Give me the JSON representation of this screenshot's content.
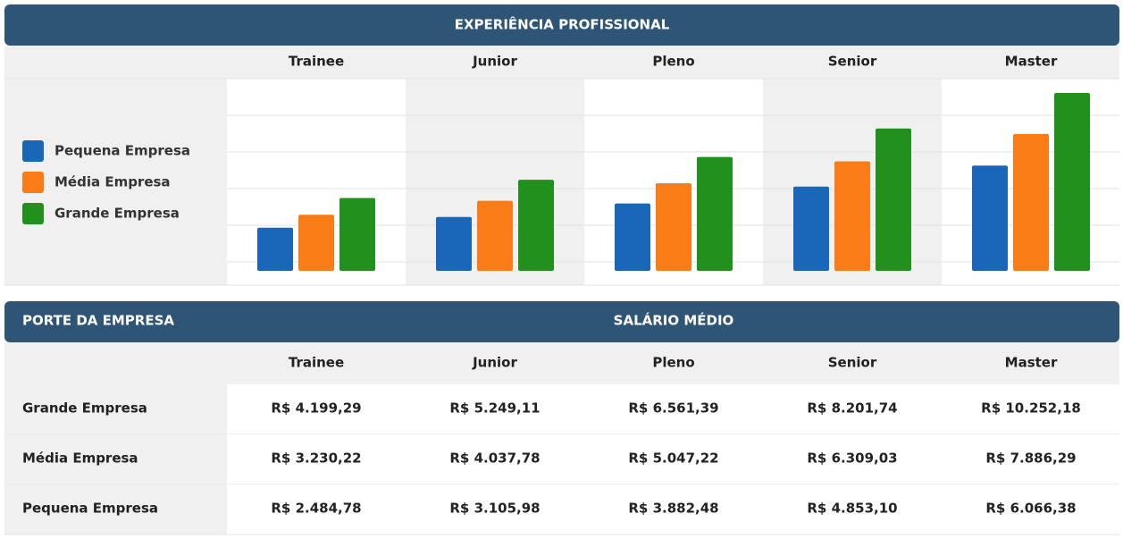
{
  "chart_data": {
    "type": "bar",
    "title": "EXPERIÊNCIA PROFISSIONAL",
    "categories": [
      "Trainee",
      "Junior",
      "Pleno",
      "Senior",
      "Master"
    ],
    "series": [
      {
        "name": "Pequena Empresa",
        "color": "#1a66b8",
        "values": [
          2484.78,
          3105.98,
          3882.48,
          4853.1,
          6066.38
        ]
      },
      {
        "name": "Média Empresa",
        "color": "#f97c16",
        "values": [
          3230.22,
          4037.78,
          5047.22,
          6309.03,
          7886.29
        ]
      },
      {
        "name": "Grande Empresa",
        "color": "#21901d",
        "values": [
          4199.29,
          5249.11,
          6561.39,
          8201.74,
          10252.18
        ]
      }
    ],
    "ylim": [
      0,
      11000
    ],
    "legend": "left"
  },
  "table": {
    "corner": "PORTE DA EMPRESA",
    "title": "SALÁRIO MÉDIO",
    "rows": [
      [
        "Grande Empresa",
        "R$ 4.199,29",
        "R$ 5.249,11",
        "R$ 6.561,39",
        "R$ 8.201,74",
        "R$ 10.252,18"
      ],
      [
        "Média Empresa",
        "R$ 3.230,22",
        "R$ 4.037,78",
        "R$ 5.047,22",
        "R$ 6.309,03",
        "R$ 7.886,29"
      ],
      [
        "Pequena Empresa",
        "R$ 2.484,78",
        "R$ 3.105,98",
        "R$ 3.882,48",
        "R$ 4.853,10",
        "R$ 6.066,38"
      ]
    ]
  }
}
